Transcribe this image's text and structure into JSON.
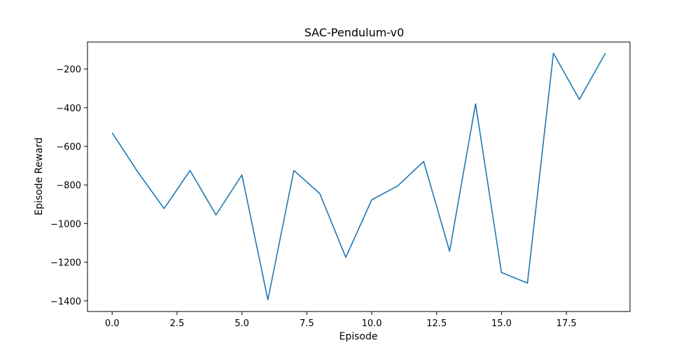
{
  "chart_data": {
    "type": "line",
    "title": "SAC-Pendulum-v0",
    "xlabel": "Episode",
    "ylabel": "Episode Reward",
    "xlim": [
      -0.95,
      19.95
    ],
    "ylim": [
      -1455,
      -60
    ],
    "xticks": [
      0,
      2.5,
      5,
      7.5,
      10,
      12.5,
      15,
      17.5
    ],
    "xtick_labels": [
      "0.0",
      "2.5",
      "5.0",
      "7.5",
      "10.0",
      "12.5",
      "15.0",
      "17.5"
    ],
    "yticks": [
      -1400,
      -1200,
      -1000,
      -800,
      -600,
      -400,
      -200
    ],
    "ytick_labels": [
      "−1400",
      "−1200",
      "−1000",
      "−800",
      "−600",
      "−400",
      "−200"
    ],
    "grid": false,
    "color": "#1f77b4",
    "series": [
      {
        "x": [
          0,
          1,
          2,
          3,
          4,
          5,
          6,
          7,
          8,
          9,
          10,
          11,
          12,
          13,
          14,
          15,
          16,
          17,
          18,
          19
        ],
        "values": [
          -530,
          -735,
          -922,
          -725,
          -955,
          -748,
          -1395,
          -725,
          -845,
          -1175,
          -877,
          -805,
          -678,
          -1143,
          -380,
          -1253,
          -1308,
          -118,
          -358,
          -118
        ]
      }
    ]
  }
}
